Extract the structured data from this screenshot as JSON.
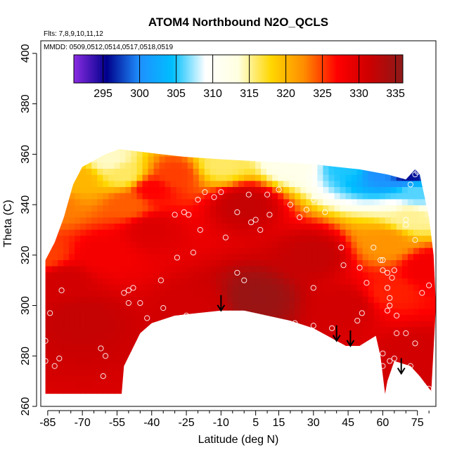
{
  "chart_data": {
    "type": "heatmap",
    "title": "ATOM4 Northbound N2O_QCLS",
    "subtitle_flights": "Flts: 7,8,9,10,11,12",
    "subtitle_dates": "MMDD: 0509,0512,0514,0517,0518,0519",
    "xlabel": "Latitude (deg N)",
    "ylabel": "Theta (C)",
    "xlim": [
      -88,
      83
    ],
    "ylim": [
      260,
      405
    ],
    "x_ticks": [
      -85,
      -70,
      -55,
      -40,
      -25,
      -10,
      5,
      15,
      30,
      45,
      60,
      75
    ],
    "y_ticks": [
      260,
      280,
      300,
      320,
      340,
      360,
      380,
      400
    ],
    "grid": false,
    "colorbar": {
      "min": 291,
      "max": 336,
      "ticks": [
        295,
        300,
        305,
        310,
        315,
        320,
        325,
        330,
        335
      ],
      "colors": [
        "#8a2be2",
        "#00008b",
        "#1e90ff",
        "#00bfff",
        "#ffffff",
        "#ffffe0",
        "#ffd700",
        "#ff8c00",
        "#ff0000",
        "#cc0000",
        "#8b1a1a"
      ]
    },
    "lower_boundary": [
      [
        -86,
        265
      ],
      [
        -53,
        265
      ],
      [
        -52,
        276
      ],
      [
        -45,
        289
      ],
      [
        -40,
        293
      ],
      [
        -30,
        296
      ],
      [
        -20,
        297
      ],
      [
        -10,
        298
      ],
      [
        0,
        298
      ],
      [
        10,
        296
      ],
      [
        20,
        294
      ],
      [
        30,
        291
      ],
      [
        38,
        287
      ],
      [
        44,
        284
      ],
      [
        50,
        284
      ],
      [
        57,
        288
      ],
      [
        59,
        280
      ],
      [
        61,
        265
      ],
      [
        62,
        270
      ],
      [
        65,
        278
      ],
      [
        72,
        276
      ],
      [
        76,
        272
      ],
      [
        81,
        266
      ]
    ],
    "upper_boundary": [
      [
        -86,
        318
      ],
      [
        -82,
        325
      ],
      [
        -78,
        335
      ],
      [
        -74,
        348
      ],
      [
        -70,
        355
      ],
      [
        -60,
        360
      ],
      [
        -54,
        362
      ],
      [
        -45,
        361
      ],
      [
        -36,
        360
      ],
      [
        -26,
        359
      ],
      [
        -10,
        358
      ],
      [
        10,
        357
      ],
      [
        30,
        356
      ],
      [
        50,
        354
      ],
      [
        62,
        352
      ],
      [
        70,
        350
      ],
      [
        74,
        354
      ],
      [
        76,
        352
      ],
      [
        80,
        335
      ],
      [
        82,
        320
      ],
      [
        83,
        300
      ]
    ],
    "field_anchors": [
      {
        "lat": -86,
        "theta": 320,
        "value": 325
      },
      {
        "lat": -82,
        "theta": 340,
        "value": 323
      },
      {
        "lat": -72,
        "theta": 350,
        "value": 320
      },
      {
        "lat": -58,
        "theta": 358,
        "value": 314
      },
      {
        "lat": -52,
        "theta": 352,
        "value": 316
      },
      {
        "lat": -50,
        "theta": 340,
        "value": 324
      },
      {
        "lat": -60,
        "theta": 320,
        "value": 328
      },
      {
        "lat": -78,
        "theta": 310,
        "value": 331
      },
      {
        "lat": -70,
        "theta": 295,
        "value": 332
      },
      {
        "lat": -40,
        "theta": 330,
        "value": 330
      },
      {
        "lat": -30,
        "theta": 352,
        "value": 325
      },
      {
        "lat": -10,
        "theta": 356,
        "value": 316
      },
      {
        "lat": 20,
        "theta": 357,
        "value": 312
      },
      {
        "lat": 45,
        "theta": 356,
        "value": 305
      },
      {
        "lat": 60,
        "theta": 354,
        "value": 300
      },
      {
        "lat": 72,
        "theta": 352,
        "value": 296
      },
      {
        "lat": 74,
        "theta": 345,
        "value": 306
      },
      {
        "lat": 72,
        "theta": 335,
        "value": 315
      },
      {
        "lat": 62,
        "theta": 325,
        "value": 322
      },
      {
        "lat": 80,
        "theta": 315,
        "value": 328
      },
      {
        "lat": 63,
        "theta": 305,
        "value": 326
      },
      {
        "lat": 0,
        "theta": 340,
        "value": 332
      },
      {
        "lat": 5,
        "theta": 303,
        "value": 335
      },
      {
        "lat": 30,
        "theta": 320,
        "value": 332
      },
      {
        "lat": -20,
        "theta": 300,
        "value": 331
      },
      {
        "lat": 45,
        "theta": 300,
        "value": 331
      },
      {
        "lat": 75,
        "theta": 280,
        "value": 331
      },
      {
        "lat": -40,
        "theta": 346,
        "value": 327
      }
    ],
    "observation_points": [
      [
        -84,
        297
      ],
      [
        -86,
        286
      ],
      [
        -86,
        278
      ],
      [
        -79,
        306
      ],
      [
        -82,
        276
      ],
      [
        -80,
        279
      ],
      [
        -62,
        283
      ],
      [
        -60,
        280
      ],
      [
        -61,
        272
      ],
      [
        -52,
        305
      ],
      [
        -50,
        306
      ],
      [
        -48,
        307
      ],
      [
        -50,
        301
      ],
      [
        -45,
        301
      ],
      [
        -42,
        295
      ],
      [
        -40,
        289
      ],
      [
        -38,
        291
      ],
      [
        -35,
        299
      ],
      [
        -43,
        280
      ],
      [
        -50,
        276
      ],
      [
        -47,
        278
      ],
      [
        -48,
        266
      ],
      [
        -36,
        310
      ],
      [
        -30,
        336
      ],
      [
        -26,
        337
      ],
      [
        -24,
        336
      ],
      [
        -20,
        342
      ],
      [
        -17,
        345
      ],
      [
        -13,
        343
      ],
      [
        -10,
        345
      ],
      [
        -3,
        337
      ],
      [
        -3,
        313
      ],
      [
        0,
        310
      ],
      [
        2,
        344
      ],
      [
        3,
        333
      ],
      [
        5,
        334
      ],
      [
        7,
        330
      ],
      [
        10,
        344
      ],
      [
        11,
        336
      ],
      [
        15,
        346
      ],
      [
        20,
        340
      ],
      [
        24,
        335
      ],
      [
        27,
        338
      ],
      [
        30,
        342
      ],
      [
        35,
        337
      ],
      [
        42,
        323
      ],
      [
        43,
        316
      ],
      [
        50,
        315
      ],
      [
        53,
        309
      ],
      [
        56,
        323
      ],
      [
        59,
        318
      ],
      [
        60,
        318
      ],
      [
        60,
        314
      ],
      [
        62,
        313
      ],
      [
        64,
        311
      ],
      [
        65,
        314
      ],
      [
        62,
        307
      ],
      [
        63,
        303
      ],
      [
        63,
        300
      ],
      [
        62,
        298
      ],
      [
        66,
        296
      ],
      [
        66,
        289
      ],
      [
        70,
        289
      ],
      [
        74,
        285
      ],
      [
        60,
        281
      ],
      [
        63,
        278
      ],
      [
        65,
        279
      ],
      [
        67,
        275
      ],
      [
        60,
        276
      ],
      [
        72,
        276
      ],
      [
        76,
        268
      ],
      [
        80,
        267
      ],
      [
        80,
        308
      ],
      [
        77,
        305
      ],
      [
        74,
        326
      ],
      [
        70,
        332
      ],
      [
        70,
        334
      ],
      [
        72,
        348
      ],
      [
        74,
        352
      ],
      [
        75,
        353
      ],
      [
        -29,
        319
      ],
      [
        -22,
        321
      ],
      [
        -19,
        330
      ],
      [
        -8,
        327
      ],
      [
        -25,
        296
      ],
      [
        -17,
        296
      ],
      [
        -10,
        289
      ],
      [
        -4,
        288
      ],
      [
        12,
        289
      ],
      [
        22,
        293
      ],
      [
        38,
        291
      ],
      [
        30,
        307
      ],
      [
        30,
        292
      ],
      [
        49,
        294
      ],
      [
        51,
        297
      ]
    ],
    "arrows": [
      {
        "lat": -10,
        "theta": 298
      },
      {
        "lat": 40,
        "theta": 286
      },
      {
        "lat": 46,
        "theta": 284
      },
      {
        "lat": 68,
        "theta": 273
      }
    ]
  }
}
